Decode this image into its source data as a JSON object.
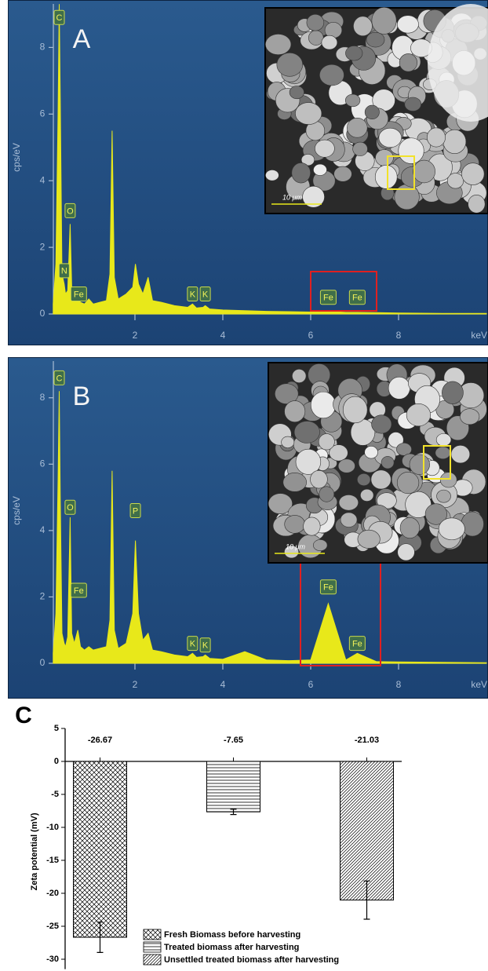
{
  "chart_data": [
    {
      "type": "area",
      "panel_label": "A",
      "ylabel": "cps/eV",
      "xlabel": "keV",
      "color": "#e8e81a",
      "xlim": [
        0,
        10
      ],
      "xticks": [
        2,
        4,
        6,
        8
      ],
      "ylim": [
        0,
        9.4
      ],
      "yticks": [
        0,
        2,
        4,
        6,
        8
      ],
      "x": [
        0.14,
        0.2,
        0.25,
        0.277,
        0.3,
        0.34,
        0.39,
        0.42,
        0.47,
        0.525,
        0.56,
        0.62,
        0.7,
        0.76,
        0.85,
        0.95,
        1.05,
        1.2,
        1.35,
        1.43,
        1.48,
        1.53,
        1.62,
        1.8,
        1.95,
        2.01,
        2.08,
        2.18,
        2.3,
        2.4,
        2.6,
        2.9,
        3.2,
        3.31,
        3.4,
        3.55,
        3.6,
        3.7,
        4.0,
        4.5,
        5.0,
        5.5,
        6.0,
        6.4,
        6.8,
        7.06,
        7.5,
        8.0,
        9.0,
        10.0
      ],
      "values": [
        0.3,
        1.5,
        6.0,
        9.3,
        6.5,
        1.2,
        0.9,
        0.6,
        0.7,
        2.7,
        0.8,
        0.4,
        0.45,
        0.35,
        0.3,
        0.45,
        0.3,
        0.35,
        0.4,
        1.2,
        5.5,
        1.1,
        0.45,
        0.6,
        0.8,
        1.5,
        0.9,
        0.6,
        1.1,
        0.4,
        0.35,
        0.25,
        0.2,
        0.3,
        0.18,
        0.2,
        0.25,
        0.15,
        0.12,
        0.1,
        0.08,
        0.07,
        0.06,
        0.08,
        0.05,
        0.05,
        0.04,
        0.03,
        0.02,
        0.02
      ],
      "peak_labels": [
        {
          "text": "C",
          "x": 0.277,
          "y": 8.9
        },
        {
          "text": "N",
          "x": 0.39,
          "y": 1.3
        },
        {
          "text": "O",
          "x": 0.525,
          "y": 3.1
        },
        {
          "text": "Fe",
          "x": 0.72,
          "y": 0.6
        },
        {
          "text": "K",
          "x": 3.31,
          "y": 0.6
        },
        {
          "text": "K",
          "x": 3.6,
          "y": 0.6
        },
        {
          "text": "Fe",
          "x": 6.4,
          "y": 0.5
        },
        {
          "text": "Fe",
          "x": 7.06,
          "y": 0.5
        }
      ],
      "inset": {
        "scale_bar": "10 μm"
      }
    },
    {
      "type": "area",
      "panel_label": "B",
      "ylabel": "cps/eV",
      "xlabel": "keV",
      "color": "#e8e81a",
      "xlim": [
        0,
        10
      ],
      "xticks": [
        2,
        4,
        6,
        8
      ],
      "ylim": [
        0,
        9.2
      ],
      "yticks": [
        0,
        2,
        4,
        6,
        8
      ],
      "x": [
        0.14,
        0.2,
        0.25,
        0.277,
        0.3,
        0.34,
        0.39,
        0.42,
        0.47,
        0.525,
        0.56,
        0.62,
        0.7,
        0.76,
        0.85,
        0.95,
        1.05,
        1.2,
        1.35,
        1.43,
        1.48,
        1.53,
        1.62,
        1.8,
        1.95,
        2.01,
        2.08,
        2.18,
        2.3,
        2.4,
        2.6,
        2.9,
        3.2,
        3.31,
        3.4,
        3.55,
        3.6,
        3.7,
        4.0,
        4.5,
        5.0,
        5.5,
        6.0,
        6.4,
        6.8,
        7.06,
        7.5,
        8.0,
        9.0,
        10.0
      ],
      "values": [
        0.3,
        1.5,
        5.5,
        8.2,
        5.0,
        0.9,
        0.6,
        0.5,
        0.8,
        4.4,
        0.9,
        0.6,
        1.0,
        0.5,
        0.4,
        0.5,
        0.4,
        0.45,
        0.5,
        1.3,
        5.8,
        1.0,
        0.45,
        0.6,
        1.5,
        3.7,
        1.5,
        0.7,
        0.9,
        0.4,
        0.35,
        0.25,
        0.2,
        0.3,
        0.18,
        0.2,
        0.25,
        0.15,
        0.12,
        0.35,
        0.1,
        0.08,
        0.1,
        1.8,
        0.1,
        0.3,
        0.05,
        0.04,
        0.03,
        0.02
      ],
      "peak_labels": [
        {
          "text": "C",
          "x": 0.277,
          "y": 8.6
        },
        {
          "text": "O",
          "x": 0.525,
          "y": 4.7
        },
        {
          "text": "Fe",
          "x": 0.72,
          "y": 2.2
        },
        {
          "text": "P",
          "x": 2.01,
          "y": 4.6
        },
        {
          "text": "K",
          "x": 3.31,
          "y": 0.6
        },
        {
          "text": "K",
          "x": 3.6,
          "y": 0.55
        },
        {
          "text": "Fe",
          "x": 6.4,
          "y": 2.3
        },
        {
          "text": "Fe",
          "x": 7.06,
          "y": 0.6
        }
      ],
      "inset": {
        "scale_bar": "10 μm"
      }
    },
    {
      "type": "bar",
      "panel_label": "C",
      "ylabel": "Zeta potential (mV)",
      "ylim": [
        -31.5,
        5
      ],
      "yticks": [
        5,
        0,
        -5,
        -10,
        -15,
        -20,
        -25,
        -30
      ],
      "values": [
        -26.67,
        -7.65,
        -21.03
      ],
      "errors": [
        2.3,
        0.4,
        2.9
      ],
      "legend": [
        "Fresh Biomass before harvesting",
        "Treated biomass after harvesting",
        "Unsettled treated biomass after harvesting"
      ],
      "patterns": [
        "crosshatch",
        "horizontal",
        "diagonal"
      ]
    }
  ]
}
